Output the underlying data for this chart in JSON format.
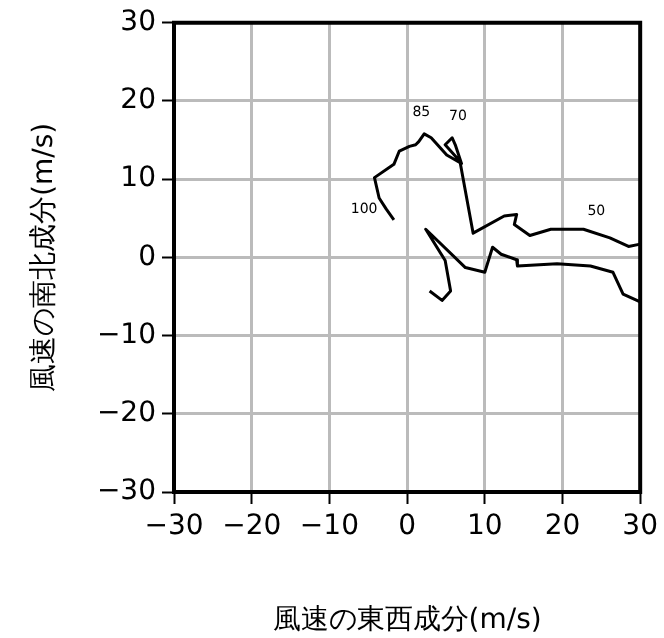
{
  "chart_data": {
    "type": "line",
    "xlabel": "風速の東西成分(m/s)",
    "ylabel": "風速の南北成分(m/s)",
    "x": [
      2.9,
      4.5,
      5.6,
      4.9,
      2.4,
      7.5,
      10.0,
      11.0,
      12.1,
      14.1,
      14.2,
      19.3,
      23.6,
      26.5,
      27.8,
      30,
      null,
      30,
      28.5,
      26.1,
      22.7,
      18.5,
      15.8,
      13.8,
      14.1,
      12.5,
      8.5,
      6.8,
      4.9,
      5.8,
      6.2,
      7.0,
      5.1,
      3.1,
      2.2,
      1.5,
      1.1,
      0.3,
      -1.0,
      -1.7,
      -4.2,
      -3.6,
      -2.7,
      -1.7
    ],
    "values": [
      -4.3,
      -5.5,
      -4.3,
      -0.4,
      3.6,
      -1.3,
      -1.9,
      1.3,
      0.4,
      -0.3,
      -1.1,
      -0.8,
      -1.1,
      -1.9,
      -4.7,
      -5.7,
      null,
      1.7,
      1.4,
      2.5,
      3.6,
      3.6,
      2.8,
      4.2,
      5.5,
      5.3,
      3.1,
      12.3,
      14.4,
      15.3,
      14.4,
      12.0,
      13.1,
      15.3,
      15.8,
      14.8,
      14.4,
      14.2,
      13.6,
      11.9,
      10.2,
      7.6,
      6.2,
      4.8
    ],
    "color": "#000000",
    "marker": "none",
    "line_style": "solid",
    "grid": true,
    "legend": false,
    "xlim": [
      -30,
      30
    ],
    "ylim": [
      -30,
      30
    ],
    "xticks": [
      {
        "value": -30,
        "label": "−30"
      },
      {
        "value": -20,
        "label": "−20"
      },
      {
        "value": -10,
        "label": "−10"
      },
      0,
      10,
      20,
      30
    ],
    "yticks": [
      {
        "value": -30,
        "label": "−30"
      },
      {
        "value": -20,
        "label": "−20"
      },
      {
        "value": -10,
        "label": "−10"
      },
      0,
      10,
      20,
      30
    ],
    "annotations": [
      {
        "text": "50",
        "x": 22.7,
        "y": 3.6
      },
      {
        "text": "70",
        "x": 5.8,
        "y": 15.3
      },
      {
        "text": "85",
        "x": 2.2,
        "y": 15.8
      },
      {
        "text": "100",
        "x": -2.7,
        "y": 6.2
      }
    ]
  }
}
